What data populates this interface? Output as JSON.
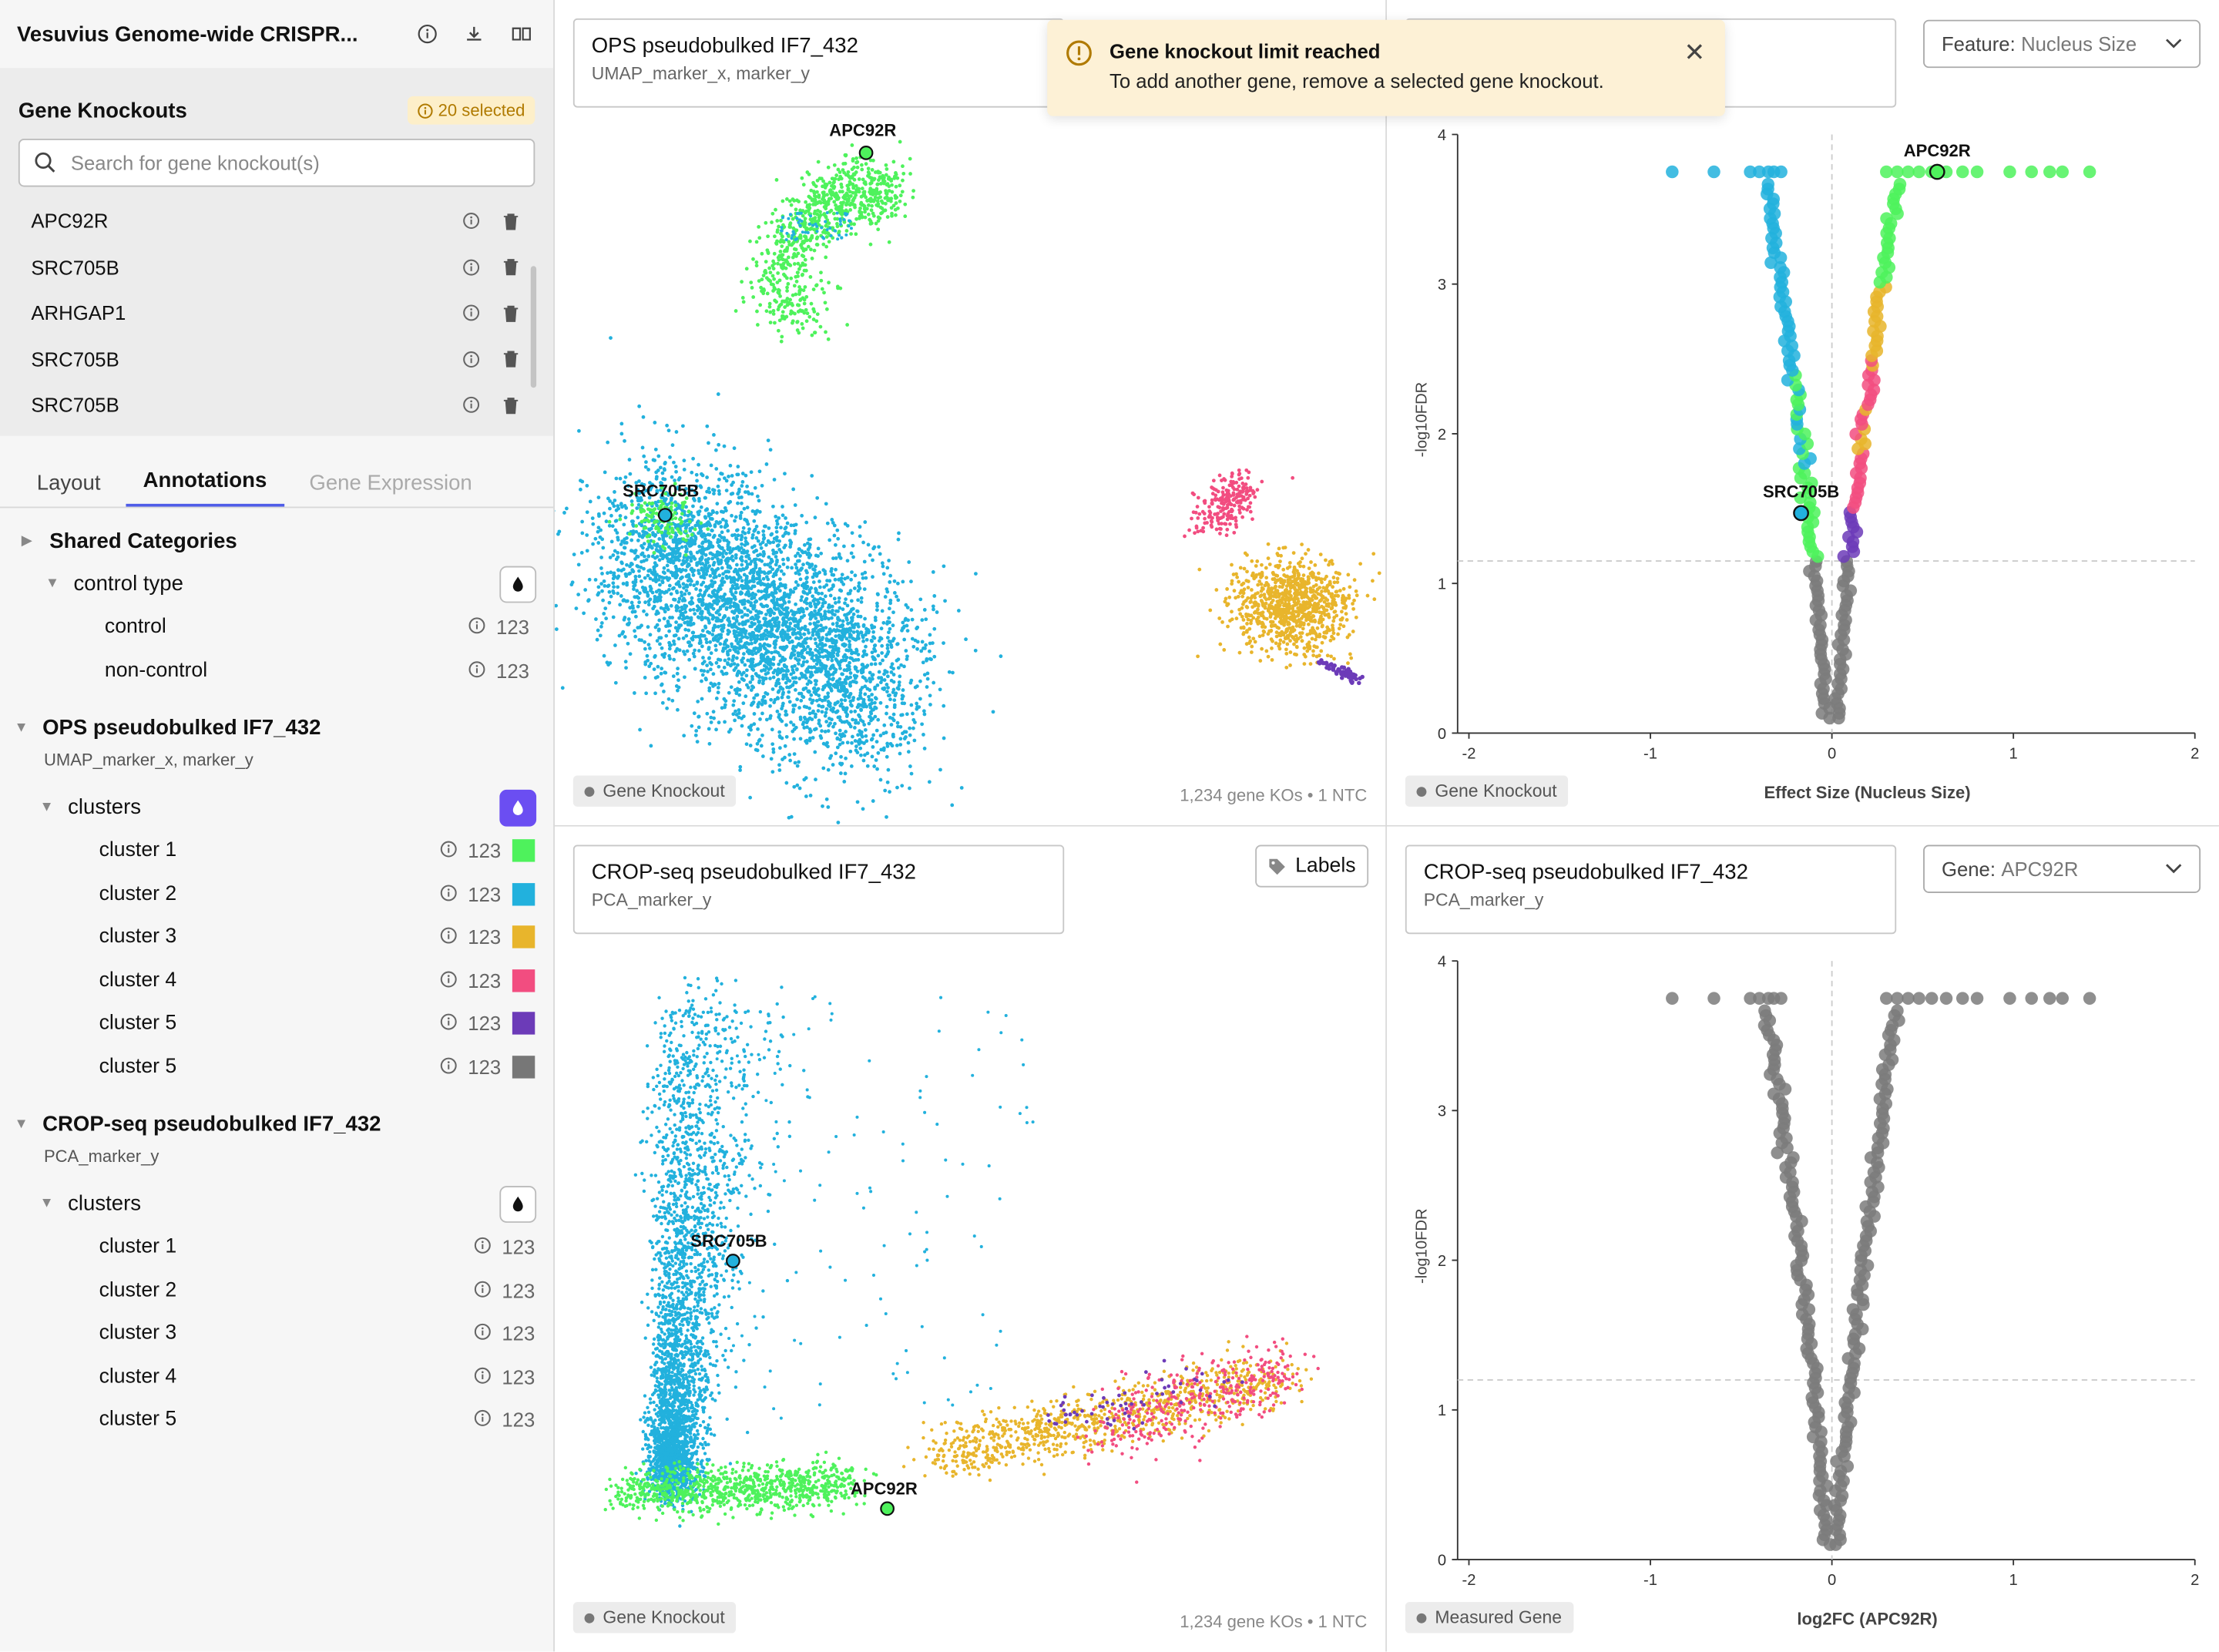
{
  "app": {
    "title": "Vesuvius Genome-wide CRISPR..."
  },
  "knockouts": {
    "title": "Gene Knockouts",
    "badge": "20 selected",
    "search_placeholder": "Search for gene knockout(s)",
    "items": [
      "APC92R",
      "SRC705B",
      "ARHGAP1",
      "SRC705B",
      "SRC705B"
    ]
  },
  "tabs": [
    {
      "label": "Layout",
      "state": "normal"
    },
    {
      "label": "Annotations",
      "state": "active"
    },
    {
      "label": "Gene Expression",
      "state": "disabled"
    }
  ],
  "tree": {
    "shared": {
      "title": "Shared Categories"
    },
    "control": {
      "title": "control type",
      "items": [
        {
          "label": "control",
          "count": "123"
        },
        {
          "label": "non-control",
          "count": "123"
        }
      ]
    },
    "ops": {
      "title": "OPS pseudobulked IF7_432",
      "subtitle": "UMAP_marker_x, marker_y",
      "group": "clusters",
      "items": [
        {
          "label": "cluster 1",
          "count": "123",
          "color": "#4ef25c"
        },
        {
          "label": "cluster 2",
          "count": "123",
          "color": "#22b1dd"
        },
        {
          "label": "cluster 3",
          "count": "123",
          "color": "#e8b52c"
        },
        {
          "label": "cluster 4",
          "count": "123",
          "color": "#f24d80"
        },
        {
          "label": "cluster 5",
          "count": "123",
          "color": "#6c3bb8"
        },
        {
          "label": "cluster 5",
          "count": "123",
          "color": "#777777"
        }
      ]
    },
    "crop": {
      "title": "CROP-seq pseudobulked IF7_432",
      "subtitle": "PCA_marker_y",
      "group": "clusters",
      "items": [
        {
          "label": "cluster 1",
          "count": "123"
        },
        {
          "label": "cluster 2",
          "count": "123"
        },
        {
          "label": "cluster 3",
          "count": "123"
        },
        {
          "label": "cluster 4",
          "count": "123"
        },
        {
          "label": "cluster 5",
          "count": "123"
        }
      ]
    }
  },
  "toast": {
    "title": "Gene knockout limit reached",
    "message": "To add another gene, remove a selected gene knockout."
  },
  "panels": {
    "tl": {
      "title": "OPS pseudobulked IF7_432",
      "subtitle": "UMAP_marker_x, marker_y",
      "chip": "Gene Knockout",
      "footnote": "1,234 gene KOs • 1 NTC",
      "labels": [
        "APC92R",
        "SRC705B"
      ]
    },
    "tr": {
      "select_key": "Feature:",
      "select_value": "Nucleus Size",
      "chip": "Gene Knockout",
      "xlabel": "Effect Size (Nucleus Size)",
      "ylabel": "-log10FDR",
      "labels": [
        "APC92R",
        "SRC705B"
      ]
    },
    "bl": {
      "title": "CROP-seq pseudobulked IF7_432",
      "subtitle": "PCA_marker_y",
      "labels_button": "Labels",
      "chip": "Gene Knockout",
      "footnote": "1,234 gene KOs • 1 NTC",
      "labels": [
        "SRC705B",
        "APC92R"
      ]
    },
    "br": {
      "title": "CROP-seq pseudobulked IF7_432",
      "subtitle": "PCA_marker_y",
      "select_key": "Gene:",
      "select_value": "APC92R",
      "chip": "Measured Gene",
      "xlabel": "log2FC (APC92R)",
      "ylabel": "-log10FDR"
    }
  },
  "chart_data": [
    {
      "type": "scatter",
      "name_ref": "volcano-feature",
      "xlabel": "Effect Size (Nucleus Size)",
      "ylabel": "-log10FDR",
      "xlim": [
        -2,
        2
      ],
      "ylim": [
        0,
        4
      ],
      "xticks": [
        -2,
        -1,
        0,
        1,
        2
      ],
      "yticks": [
        0,
        1,
        2,
        3,
        4
      ],
      "threshold_y": 1.15,
      "highlights": [
        {
          "label": "APC92R",
          "x": 0.58,
          "y": 3.75
        },
        {
          "label": "SRC705B",
          "x": -0.17,
          "y": 1.47
        }
      ]
    },
    {
      "type": "scatter",
      "name_ref": "volcano-gene",
      "xlabel": "log2FC (APC92R)",
      "ylabel": "-log10FDR",
      "xlim": [
        -2,
        2
      ],
      "ylim": [
        0,
        4
      ],
      "xticks": [
        -2,
        -1,
        0,
        1,
        2
      ],
      "yticks": [
        0,
        1,
        2,
        3,
        4
      ],
      "threshold_y": 1.2
    }
  ]
}
